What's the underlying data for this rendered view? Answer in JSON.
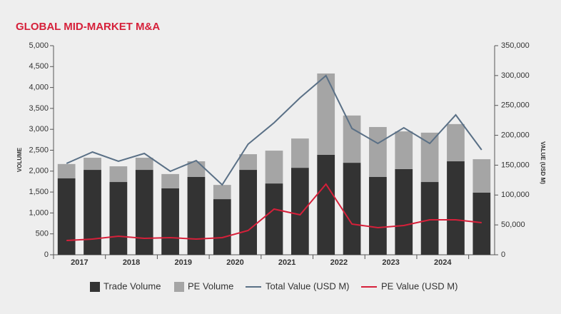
{
  "chart_data": {
    "type": "bar-line",
    "title": "GLOBAL MID-MARKET M&A",
    "y_label": "VOLUME",
    "y2_label": "VALUE (USD M)",
    "categories": [
      "2017",
      null,
      "2018",
      null,
      "2019",
      null,
      "2020",
      null,
      "2021",
      null,
      "2022",
      null,
      "2023",
      null,
      "2024",
      null,
      null
    ],
    "series": [
      {
        "name": "Trade Volume",
        "type": "bar",
        "stack": true,
        "color": "#333333",
        "values": [
          1830,
          2030,
          1740,
          2030,
          1590,
          1860,
          1330,
          2030,
          1705,
          2080,
          2390,
          2200,
          1860,
          2050,
          1740,
          2235,
          1485
        ]
      },
      {
        "name": "PE Volume",
        "type": "bar",
        "stack": true,
        "color": "#a5a5a5",
        "values": [
          340,
          290,
          375,
          290,
          340,
          375,
          340,
          375,
          785,
          700,
          1945,
          1130,
          1195,
          900,
          1180,
          890,
          800
        ]
      },
      {
        "name": "Total Value (USD M)",
        "type": "line",
        "axis": "y2",
        "color": "#5a7086",
        "values": [
          152900,
          172000,
          156500,
          169600,
          139800,
          157700,
          117100,
          185200,
          221000,
          262800,
          299800,
          211400,
          186300,
          212600,
          186300,
          234100,
          175600
        ]
      },
      {
        "name": "PE Value (USD M)",
        "type": "line",
        "axis": "y2",
        "color": "#d6203a",
        "values": [
          23900,
          26300,
          31100,
          27500,
          28700,
          26300,
          28700,
          40600,
          76500,
          66900,
          118300,
          51400,
          45400,
          49000,
          58500,
          58500,
          53800
        ]
      }
    ],
    "ylim": [
      0,
      5000
    ],
    "yticks": [
      0,
      500,
      {
        "value": 1000,
        "label": "1,000"
      },
      {
        "value": 1500,
        "label": "1,500"
      },
      {
        "value": 2000,
        "label": "2,000"
      },
      {
        "value": 2500,
        "label": "2,500"
      },
      {
        "value": 3000,
        "label": "3,000"
      },
      {
        "value": 3500,
        "label": "3,500"
      },
      {
        "value": 4000,
        "label": "4,000"
      },
      {
        "value": 4500,
        "label": "4,500"
      },
      {
        "value": 5000,
        "label": "5,000"
      }
    ],
    "y2lim": [
      0,
      350000
    ],
    "y2ticks": [
      0,
      {
        "value": 50000,
        "label": "50,000"
      },
      {
        "value": 100000,
        "label": "100,000"
      },
      {
        "value": 150000,
        "label": "150,000"
      },
      {
        "value": 200000,
        "label": "200,000"
      },
      {
        "value": 250000,
        "label": "250,000"
      },
      {
        "value": 300000,
        "label": "300,000"
      },
      {
        "value": 350000,
        "label": "350,000"
      }
    ],
    "legend": "bottom"
  }
}
